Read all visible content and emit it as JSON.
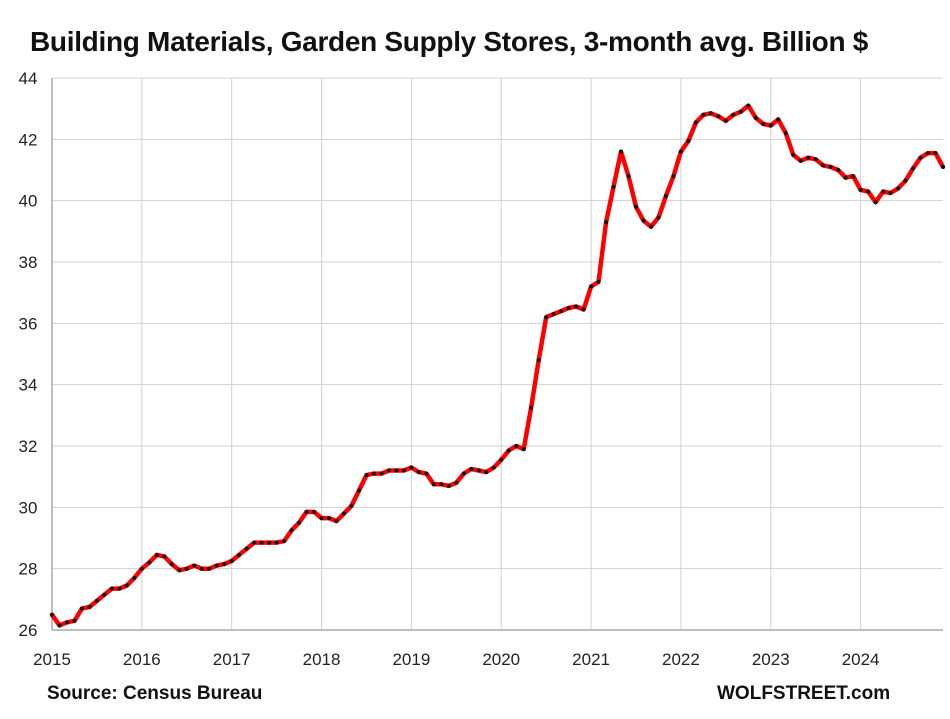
{
  "chart_data": {
    "type": "line",
    "title": "Building Materials, Garden Supply Stores, 3-month avg. Billion $",
    "xlabel": "",
    "ylabel": "",
    "xlim": [
      2015.0,
      2024.917
    ],
    "ylim": [
      26,
      44
    ],
    "y_ticks": [
      "26",
      "28",
      "30",
      "32",
      "34",
      "36",
      "38",
      "40",
      "42",
      "44"
    ],
    "x_ticks": [
      "2015",
      "2016",
      "2017",
      "2018",
      "2019",
      "2020",
      "2021",
      "2022",
      "2023",
      "2024"
    ],
    "grid": true,
    "legend": "none",
    "series": [
      {
        "line_color": "#ff0000",
        "marker_color": "#111111",
        "x": [
          2015.0,
          2015.083,
          2015.167,
          2015.25,
          2015.333,
          2015.417,
          2015.5,
          2015.583,
          2015.667,
          2015.75,
          2015.833,
          2015.917,
          2016.0,
          2016.083,
          2016.167,
          2016.25,
          2016.333,
          2016.417,
          2016.5,
          2016.583,
          2016.667,
          2016.75,
          2016.833,
          2016.917,
          2017.0,
          2017.083,
          2017.167,
          2017.25,
          2017.333,
          2017.417,
          2017.5,
          2017.583,
          2017.667,
          2017.75,
          2017.833,
          2017.917,
          2018.0,
          2018.083,
          2018.167,
          2018.25,
          2018.333,
          2018.417,
          2018.5,
          2018.583,
          2018.667,
          2018.75,
          2018.833,
          2018.917,
          2019.0,
          2019.083,
          2019.167,
          2019.25,
          2019.333,
          2019.417,
          2019.5,
          2019.583,
          2019.667,
          2019.75,
          2019.833,
          2019.917,
          2020.0,
          2020.083,
          2020.167,
          2020.25,
          2020.333,
          2020.417,
          2020.5,
          2020.583,
          2020.667,
          2020.75,
          2020.833,
          2020.917,
          2021.0,
          2021.083,
          2021.167,
          2021.25,
          2021.333,
          2021.417,
          2021.5,
          2021.583,
          2021.667,
          2021.75,
          2021.833,
          2021.917,
          2022.0,
          2022.083,
          2022.167,
          2022.25,
          2022.333,
          2022.417,
          2022.5,
          2022.583,
          2022.667,
          2022.75,
          2022.833,
          2022.917,
          2023.0,
          2023.083,
          2023.167,
          2023.25,
          2023.333,
          2023.417,
          2023.5,
          2023.583,
          2023.667,
          2023.75,
          2023.833,
          2023.917,
          2024.0,
          2024.083,
          2024.167,
          2024.25,
          2024.333,
          2024.417,
          2024.5,
          2024.583,
          2024.667,
          2024.75,
          2024.833,
          2024.917
        ],
        "y": [
          26.5,
          26.15,
          26.25,
          26.3,
          26.7,
          26.75,
          26.95,
          27.15,
          27.35,
          27.35,
          27.45,
          27.7,
          28.0,
          28.2,
          28.45,
          28.4,
          28.15,
          27.95,
          28.0,
          28.1,
          28.0,
          28.0,
          28.1,
          28.15,
          28.25,
          28.45,
          28.65,
          28.85,
          28.85,
          28.85,
          28.85,
          28.9,
          29.25,
          29.5,
          29.85,
          29.85,
          29.65,
          29.65,
          29.55,
          29.8,
          30.05,
          30.55,
          31.05,
          31.1,
          31.1,
          31.2,
          31.2,
          31.2,
          31.3,
          31.15,
          31.1,
          30.75,
          30.75,
          30.7,
          30.8,
          31.1,
          31.25,
          31.2,
          31.15,
          31.3,
          31.55,
          31.85,
          32.0,
          31.9,
          33.25,
          34.8,
          36.2,
          36.3,
          36.4,
          36.5,
          36.55,
          36.45,
          37.2,
          37.35,
          39.3,
          40.45,
          41.6,
          40.8,
          39.8,
          39.35,
          39.15,
          39.45,
          40.15,
          40.8,
          41.6,
          41.95,
          42.55,
          42.8,
          42.85,
          42.75,
          42.6,
          42.8,
          42.9,
          43.1,
          42.7,
          42.5,
          42.45,
          42.65,
          42.2,
          41.5,
          41.3,
          41.4,
          41.35,
          41.15,
          41.1,
          41.0,
          40.75,
          40.8,
          40.35,
          40.3,
          39.95,
          40.3,
          40.25,
          40.4,
          40.65,
          41.05,
          41.4,
          41.55,
          41.55,
          41.1
        ]
      }
    ]
  },
  "footer": {
    "source": "Source: Census Bureau",
    "brand": "WOLFSTREET.com"
  }
}
